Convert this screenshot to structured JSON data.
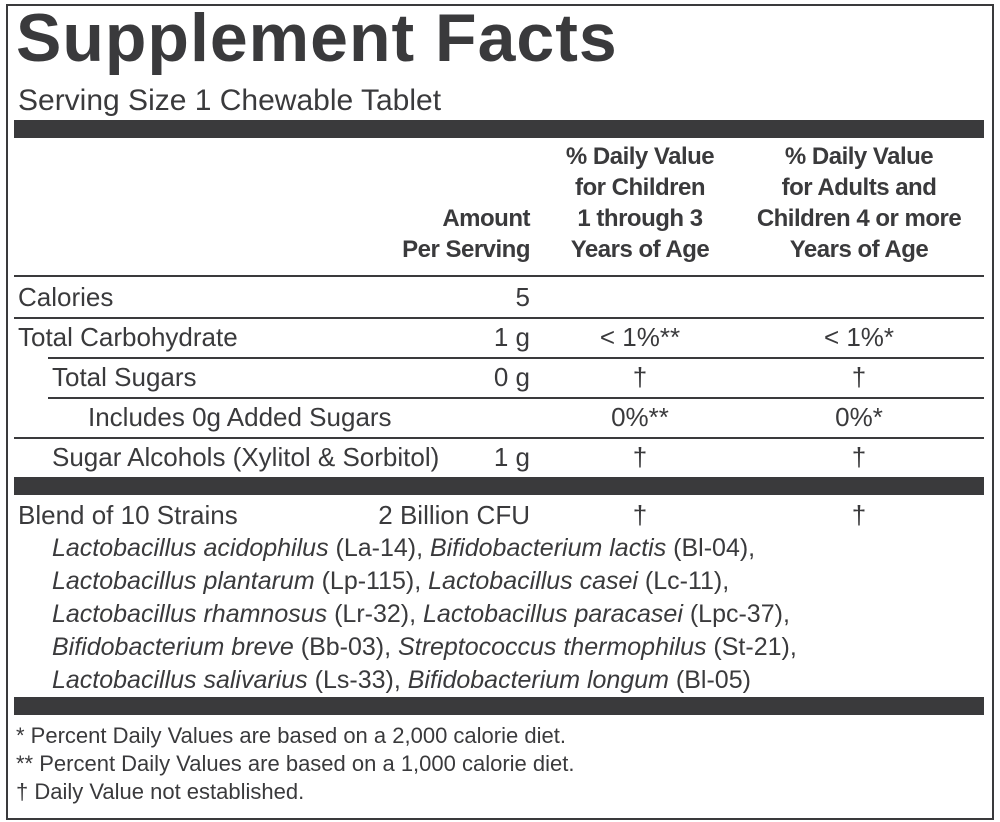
{
  "header": {
    "title": "Supplement Facts",
    "serving_size": "Serving Size 1 Chewable Tablet"
  },
  "columns": {
    "amount": [
      "Amount",
      "Per Serving"
    ],
    "children": [
      "% Daily Value",
      "for Children",
      "1 through 3",
      "Years of Age"
    ],
    "adults": [
      "% Daily Value",
      "for Adults and",
      "Children 4 or more",
      "Years of Age"
    ]
  },
  "rows": [
    {
      "label": "Calories",
      "amount": "5"
    },
    {
      "label": "Total Carbohydrate",
      "amount": "1 g",
      "dv_children": "< 1%**",
      "dv_adults": "< 1%*"
    },
    {
      "label": "Total Sugars",
      "amount": "0 g",
      "dv_children": "†",
      "dv_adults": "†"
    },
    {
      "label": "Includes 0g Added Sugars",
      "dv_children": "0%**",
      "dv_adults": "0%*"
    },
    {
      "label": "Sugar Alcohols (Xylitol & Sorbitol)",
      "amount": "1 g",
      "dv_children": "†",
      "dv_adults": "†"
    }
  ],
  "blend": {
    "label": "Blend of 10 Strains",
    "amount": "2 Billion CFU",
    "dv_children": "†",
    "dv_adults": "†",
    "lines": [
      [
        {
          "name": "Lactobacillus acidophilus",
          "code": " (La-14), "
        },
        {
          "name": "Bifidobacterium lactis",
          "code": " (Bl-04),"
        }
      ],
      [
        {
          "name": "Lactobacillus plantarum",
          "code": " (Lp-115), "
        },
        {
          "name": "Lactobacillus casei",
          "code": " (Lc-11),"
        }
      ],
      [
        {
          "name": "Lactobacillus rhamnosus",
          "code": " (Lr-32), "
        },
        {
          "name": "Lactobacillus paracasei",
          "code": " (Lpc-37),"
        }
      ],
      [
        {
          "name": "Bifidobacterium breve",
          "code": " (Bb-03), "
        },
        {
          "name": "Streptococcus thermophilus",
          "code": " (St-21),"
        }
      ],
      [
        {
          "name": "Lactobacillus salivarius",
          "code": " (Ls-33), "
        },
        {
          "name": "Bifidobacterium longum",
          "code": " (Bl-05)"
        }
      ]
    ]
  },
  "footnotes": [
    "* Percent Daily Values are based on a 2,000 calorie diet.",
    "** Percent Daily Values are based on a 1,000 calorie diet.",
    "† Daily Value not established."
  ]
}
